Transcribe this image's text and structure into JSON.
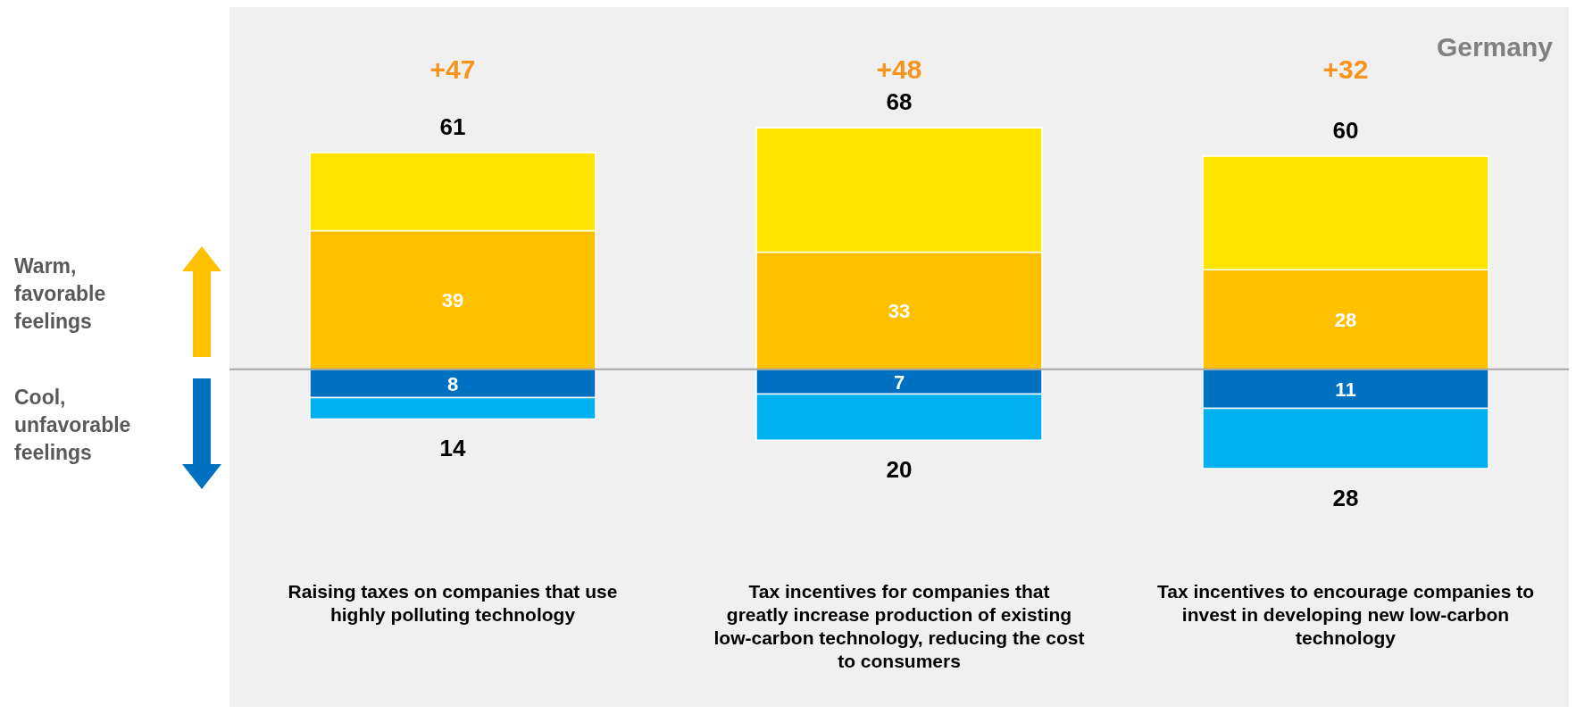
{
  "chart_data": {
    "type": "bar",
    "title": "Germany",
    "stacked": true,
    "categories": [
      "Raising taxes on companies that use highly polluting technology",
      "Tax incentives for companies that greatly increase production of existing low-carbon technology, reducing the cost to consumers",
      "Tax incentives to encourage companies to invest in developing new low-carbon technology"
    ],
    "series": [
      {
        "color": "#ffc000",
        "values": [
          39,
          33,
          28
        ],
        "value_labels": [
          "39",
          "33",
          "28"
        ]
      },
      {
        "color": "#ffe500",
        "values": [
          22,
          35,
          32
        ]
      },
      {
        "color": "#0070c0",
        "values": [
          -8,
          -7,
          -11
        ]
      },
      {
        "color": "#00b0f0",
        "values": [
          -6,
          -13,
          -17
        ]
      }
    ],
    "ref_lines": [
      {
        "axis": "y",
        "value": 0,
        "color": "#a6a6a6"
      }
    ],
    "annotations": [
      {
        "text": "61",
        "x": "Raising taxes on companies that use highly polluting technology",
        "y": 61
      },
      {
        "text": "68",
        "x": "Tax incentives for companies that greatly increase production of existing low-carbon technology, reducing the cost to consumers",
        "y": 68
      },
      {
        "text": "60",
        "x": "Tax incentives to encourage companies to invest in developing new low-carbon technology",
        "y": 60
      },
      {
        "text": "8",
        "x": "Raising taxes on companies that use highly polluting technology",
        "y": -8
      },
      {
        "text": "7",
        "x": "Tax incentives for companies that greatly increase production of existing low-carbon technology, reducing the cost to consumers",
        "y": -7
      },
      {
        "text": "11",
        "x": "Tax incentives to encourage companies to invest in developing new low-carbon technology",
        "y": -11
      },
      {
        "text": "14",
        "x": "Raising taxes on companies that use highly polluting technology",
        "y": -14
      },
      {
        "text": "20",
        "x": "Tax incentives for companies that greatly increase production of existing low-carbon technology, reducing the cost to consumers",
        "y": -20
      },
      {
        "text": "28",
        "x": "Tax incentives to encourage companies to invest in developing new low-carbon technology",
        "y": -28
      },
      "+47",
      "+48",
      "+32",
      "Warm, favorable feelings",
      "Cool, unfavorable feelings"
    ]
  }
}
